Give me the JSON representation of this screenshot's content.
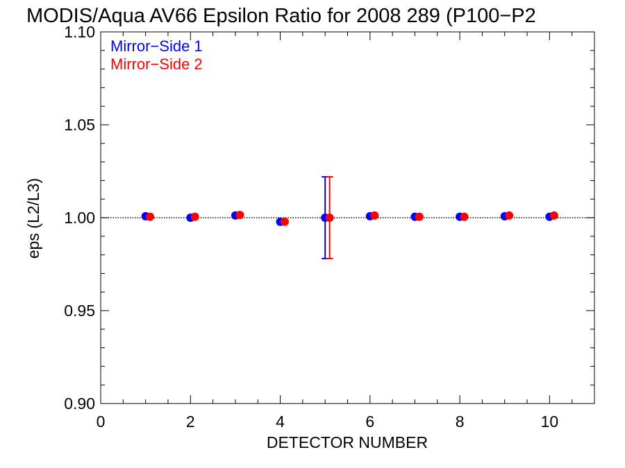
{
  "chart_data": {
    "type": "scatter",
    "title": "MODIS/Aqua AV66 Epsilon Ratio for 2008 289 (P100−P2",
    "xlabel": "DETECTOR NUMBER",
    "ylabel": "eps (L2/L3)",
    "xlim": [
      0,
      11
    ],
    "ylim": [
      0.9,
      1.1
    ],
    "x_ticks": [
      0,
      2,
      4,
      6,
      8,
      10
    ],
    "x_tick_labels": [
      "0",
      "2",
      "4",
      "6",
      "8",
      "10"
    ],
    "y_ticks": [
      0.9,
      0.95,
      1.0,
      1.05,
      1.1
    ],
    "y_tick_labels": [
      "0.90",
      "0.95",
      "1.00",
      "1.05",
      "1.10"
    ],
    "reference_line": 1.0,
    "legend_position": "top-left",
    "series": [
      {
        "name": "Mirror−Side 1",
        "color": "#0000ff",
        "x": [
          1,
          2,
          3,
          4,
          5,
          6,
          7,
          8,
          9,
          10
        ],
        "y": [
          1.0008,
          1.0,
          1.0012,
          0.9978,
          1.0,
          1.0008,
          1.0005,
          1.0005,
          1.0008,
          1.0005
        ],
        "error_bars": [
          {
            "x": 5,
            "low": 0.978,
            "high": 1.022
          }
        ]
      },
      {
        "name": "Mirror−Side 2",
        "color": "#ff0000",
        "x": [
          1.1,
          2.1,
          3.1,
          4.1,
          5.1,
          6.1,
          7.1,
          8.1,
          9.1,
          10.1
        ],
        "y": [
          1.0005,
          1.0005,
          1.0015,
          0.9978,
          1.0,
          1.0012,
          1.0005,
          1.0005,
          1.0012,
          1.0012
        ],
        "error_bars": [
          {
            "x": 5.1,
            "low": 0.978,
            "high": 1.022
          }
        ]
      }
    ]
  }
}
